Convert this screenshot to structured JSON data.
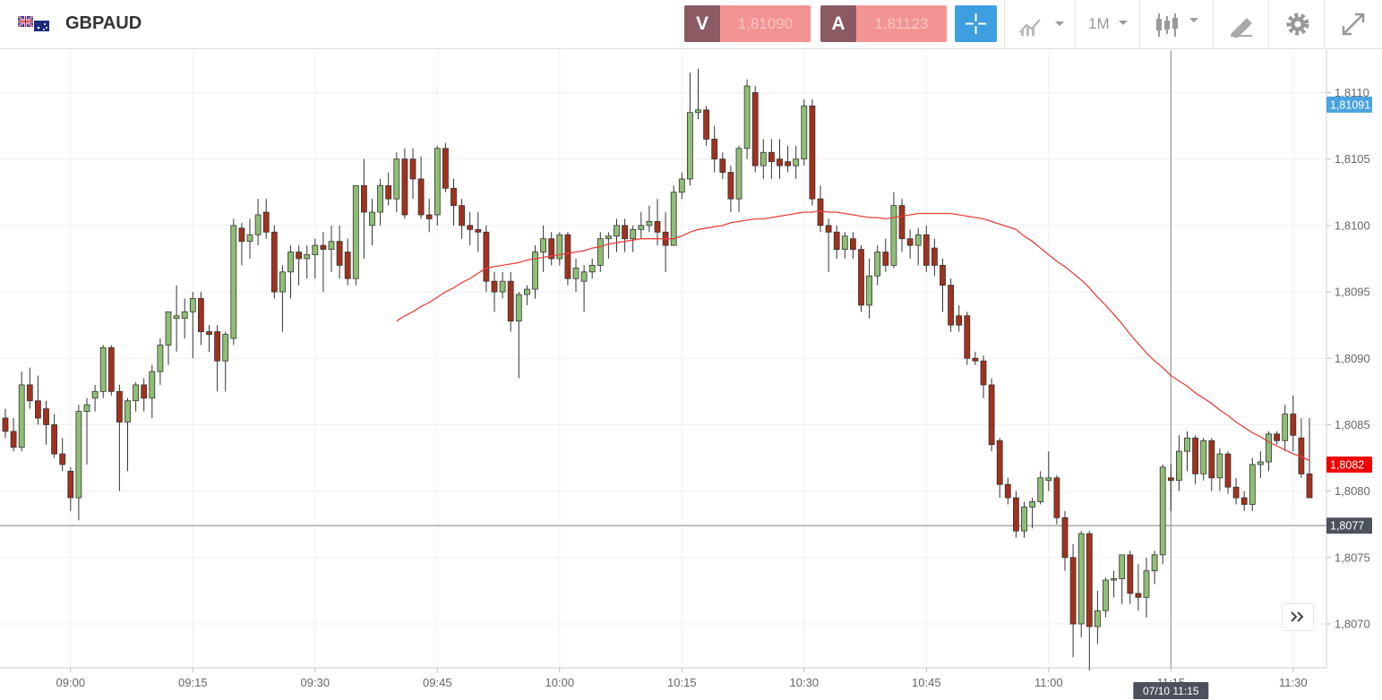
{
  "header": {
    "symbol": "GBPAUD",
    "bid": {
      "label": "V",
      "price": "1,81090"
    },
    "ask": {
      "label": "A",
      "price": "1,81123"
    },
    "timeframe": "1M"
  },
  "chart_data": {
    "type": "candlestick",
    "categories": [
      null,
      null,
      null,
      null,
      null,
      null,
      null,
      null,
      "09:00",
      null,
      null,
      null,
      null,
      null,
      null,
      null,
      null,
      null,
      null,
      null,
      null,
      null,
      null,
      "09:15",
      null,
      null,
      null,
      null,
      null,
      null,
      null,
      null,
      null,
      null,
      null,
      null,
      null,
      null,
      "09:30",
      null,
      null,
      null,
      null,
      null,
      null,
      null,
      null,
      null,
      null,
      null,
      null,
      null,
      null,
      "09:45",
      null,
      null,
      null,
      null,
      null,
      null,
      null,
      null,
      null,
      null,
      null,
      null,
      null,
      null,
      "10:00",
      null,
      null,
      null,
      null,
      null,
      null,
      null,
      null,
      null,
      null,
      null,
      null,
      null,
      null,
      "10:15",
      null,
      null,
      null,
      null,
      null,
      null,
      null,
      null,
      null,
      null,
      null,
      null,
      null,
      null,
      "10:30",
      null,
      null,
      null,
      null,
      null,
      null,
      null,
      null,
      null,
      null,
      null,
      null,
      null,
      null,
      "10:45",
      null,
      null,
      null,
      null,
      null,
      null,
      null,
      null,
      null,
      null,
      null,
      null,
      null,
      null,
      "11:00",
      null,
      null,
      null,
      null,
      null,
      null,
      null,
      null,
      null,
      null,
      null,
      null,
      null,
      null,
      "11:15",
      null,
      null,
      null,
      null,
      null,
      null,
      null,
      null,
      null,
      null,
      null,
      null,
      null,
      null,
      "11:30",
      null,
      null
    ],
    "open": [
      1.80855,
      1.80845,
      1.80833,
      1.8088,
      1.80868,
      1.80862,
      1.8085,
      1.80828,
      1.80815,
      1.80795,
      1.8086,
      1.8087,
      1.80875,
      1.80908,
      1.80875,
      1.80852,
      1.80868,
      1.8088,
      1.8087,
      1.8089,
      1.8091,
      1.8093,
      1.8093,
      1.80935,
      1.80945,
      1.8092,
      1.8092,
      1.80898,
      1.80915,
      1.80998,
      1.80988,
      1.80993,
      1.8101,
      1.80995,
      1.8095,
      1.80965,
      1.8098,
      1.80975,
      1.80978,
      1.80985,
      1.80982,
      1.80988,
      1.8098,
      1.8096,
      1.8103,
      1.81,
      1.8101,
      1.8103,
      1.8102,
      1.8105,
      1.8105,
      1.81035,
      1.81008,
      1.81008,
      1.81058,
      1.81028,
      1.81015,
      1.81,
      1.80997,
      1.80995,
      1.80958,
      1.8095,
      1.80958,
      1.80928,
      1.80948,
      1.80952,
      1.8098,
      1.8099,
      1.80975,
      1.80993,
      1.8096,
      1.80958,
      1.80965,
      1.8097,
      1.8099,
      1.80992,
      1.81,
      1.8099,
      1.80997,
      1.81,
      1.81003,
      1.80995,
      1.80985,
      1.81025,
      1.81035,
      1.81085,
      1.81087,
      1.81065,
      1.8105,
      1.8104,
      1.8102,
      1.81058,
      1.811,
      1.81045,
      1.81055,
      1.8105,
      1.81048,
      1.81045,
      1.8105,
      1.8109,
      1.8102,
      1.81,
      1.80995,
      1.80982,
      1.8099,
      1.80982,
      1.8094,
      1.80962,
      1.8098,
      1.8097,
      1.81015,
      1.8099,
      1.80985,
      1.80993,
      1.80983,
      1.8097,
      1.80955,
      1.80932,
      1.80932,
      1.809,
      1.80898,
      1.8088,
      1.80838,
      1.80805,
      1.80795,
      1.8077,
      1.80788,
      1.80792,
      1.80808,
      1.8081,
      1.8078,
      1.8075,
      1.807,
      1.80768,
      1.80698,
      1.8071,
      1.80733,
      1.80734,
      1.80752,
      1.80723,
      1.8072,
      1.8074,
      1.80752,
      1.8081,
      1.80808,
      1.8083,
      1.8084,
      1.80813,
      1.80838,
      1.8081,
      1.80828,
      1.80803,
      1.80795,
      1.8079,
      1.8082,
      1.80822,
      1.80843,
      1.80838,
      1.80858,
      1.8084,
      1.80813
    ],
    "high": [
      1.80862,
      1.80855,
      1.8089,
      1.80893,
      1.80887,
      1.80868,
      1.80858,
      1.8084,
      1.80818,
      1.80865,
      1.8087,
      1.8088,
      1.8091,
      1.8091,
      1.8088,
      1.8087,
      1.80882,
      1.80885,
      1.80895,
      1.80915,
      1.80935,
      1.80955,
      1.80945,
      1.8095,
      1.8095,
      1.80925,
      1.80925,
      1.8092,
      1.81005,
      1.81002,
      1.81005,
      1.8102,
      1.8102,
      1.81,
      1.8097,
      1.80985,
      1.80985,
      1.80985,
      1.8099,
      1.80995,
      1.81,
      1.81,
      1.8099,
      1.8103,
      1.8105,
      1.8102,
      1.81035,
      1.8104,
      1.81055,
      1.81058,
      1.81058,
      1.81052,
      1.8102,
      1.8106,
      1.81062,
      1.81035,
      1.8102,
      1.8101,
      1.8101,
      1.81,
      1.80965,
      1.80965,
      1.80965,
      1.8095,
      1.80955,
      1.80985,
      1.81,
      1.80995,
      1.80995,
      1.80995,
      1.80975,
      1.8097,
      1.80975,
      1.80995,
      1.80995,
      1.81005,
      1.81005,
      1.81,
      1.8101,
      1.81015,
      1.8102,
      1.8101,
      1.8103,
      1.8104,
      1.81115,
      1.81118,
      1.8109,
      1.81075,
      1.81055,
      1.81045,
      1.8106,
      1.8111,
      1.81105,
      1.81065,
      1.81065,
      1.81065,
      1.8106,
      1.8106,
      1.81095,
      1.81095,
      1.8103,
      1.81005,
      1.81,
      1.80995,
      1.80995,
      1.80985,
      1.80975,
      1.80985,
      1.8099,
      1.81025,
      1.8102,
      1.80997,
      1.80998,
      1.81,
      1.8099,
      1.80975,
      1.8096,
      1.8094,
      1.80935,
      1.80905,
      1.80902,
      1.80885,
      1.8084,
      1.8081,
      1.808,
      1.80792,
      1.80795,
      1.80815,
      1.8083,
      1.80812,
      1.80785,
      1.8076,
      1.8077,
      1.8077,
      1.80725,
      1.80735,
      1.8074,
      1.8075,
      1.80755,
      1.80745,
      1.8075,
      1.80755,
      1.8082,
      1.8082,
      1.80842,
      1.80845,
      1.80842,
      1.8084,
      1.8084,
      1.80832,
      1.8083,
      1.8081,
      1.808,
      1.80825,
      1.8083,
      1.80845,
      1.80845,
      1.80865,
      1.80872,
      1.80855,
      1.80855
    ],
    "low": [
      1.8084,
      1.8083,
      1.8083,
      1.80862,
      1.8085,
      1.80835,
      1.80825,
      1.80815,
      1.80785,
      1.80778,
      1.8082,
      1.8086,
      1.8087,
      1.80872,
      1.808,
      1.80815,
      1.8086,
      1.8086,
      1.80855,
      1.8088,
      1.80895,
      1.80905,
      1.80915,
      1.809,
      1.8091,
      1.80905,
      1.80875,
      1.80875,
      1.8091,
      1.8097,
      1.80975,
      1.80985,
      1.8099,
      1.80945,
      1.8092,
      1.80945,
      1.80955,
      1.8096,
      1.8096,
      1.8095,
      1.80965,
      1.8096,
      1.80955,
      1.80955,
      1.80975,
      1.80985,
      1.81,
      1.81015,
      1.8101,
      1.81005,
      1.8102,
      1.81005,
      1.80995,
      1.81,
      1.81025,
      1.81,
      1.8099,
      1.80985,
      1.8098,
      1.8095,
      1.80935,
      1.80945,
      1.8092,
      1.80885,
      1.8094,
      1.80945,
      1.80965,
      1.8097,
      1.8097,
      1.80955,
      1.8095,
      1.80935,
      1.8096,
      1.80965,
      1.80975,
      1.8098,
      1.8098,
      1.8098,
      1.8099,
      1.80995,
      1.80985,
      1.80965,
      1.80985,
      1.8102,
      1.8103,
      1.8108,
      1.8106,
      1.8104,
      1.81035,
      1.8101,
      1.8101,
      1.8105,
      1.8104,
      1.81035,
      1.81035,
      1.81035,
      1.8104,
      1.81035,
      1.81045,
      1.81015,
      1.80995,
      1.80965,
      1.80975,
      1.80975,
      1.80975,
      1.80935,
      1.8093,
      1.80955,
      1.80965,
      1.80968,
      1.8098,
      1.80975,
      1.8097,
      1.80965,
      1.80962,
      1.80935,
      1.8092,
      1.8092,
      1.80895,
      1.80895,
      1.8087,
      1.8083,
      1.80795,
      1.8079,
      1.80765,
      1.80765,
      1.80772,
      1.8079,
      1.808,
      1.80775,
      1.8074,
      1.80675,
      1.8069,
      1.80665,
      1.80685,
      1.80705,
      1.8072,
      1.80715,
      1.80715,
      1.8071,
      1.80705,
      1.8073,
      1.80745,
      1.80785,
      1.808,
      1.80815,
      1.80805,
      1.80808,
      1.808,
      1.808,
      1.80798,
      1.8079,
      1.80785,
      1.80785,
      1.8081,
      1.80815,
      1.80835,
      1.8083,
      1.8083,
      1.8081,
      1.80795
    ],
    "close": [
      1.80845,
      1.80833,
      1.8088,
      1.80868,
      1.80855,
      1.8085,
      1.80828,
      1.8082,
      1.80795,
      1.8086,
      1.80865,
      1.80875,
      1.80908,
      1.80875,
      1.80852,
      1.80868,
      1.8088,
      1.8087,
      1.8089,
      1.8091,
      1.80935,
      1.80932,
      1.80935,
      1.80945,
      1.8092,
      1.80918,
      1.80898,
      1.80918,
      1.81,
      1.80988,
      1.80993,
      1.81008,
      1.80995,
      1.8095,
      1.80965,
      1.8098,
      1.80975,
      1.80978,
      1.80985,
      1.80982,
      1.80988,
      1.8097,
      1.8096,
      1.8103,
      1.8101,
      1.8101,
      1.8103,
      1.8102,
      1.8105,
      1.81008,
      1.81035,
      1.81008,
      1.81005,
      1.81058,
      1.81028,
      1.81015,
      1.81,
      1.80997,
      1.80995,
      1.80958,
      1.8095,
      1.80958,
      1.80928,
      1.80948,
      1.80952,
      1.8098,
      1.8099,
      1.80975,
      1.80993,
      1.8096,
      1.80968,
      1.80965,
      1.8097,
      1.8099,
      1.80992,
      1.81,
      1.8099,
      1.80997,
      1.81,
      1.81003,
      1.80995,
      1.80985,
      1.81025,
      1.81035,
      1.81085,
      1.81087,
      1.81065,
      1.8105,
      1.8104,
      1.8102,
      1.81058,
      1.81105,
      1.81045,
      1.81055,
      1.81048,
      1.81045,
      1.81045,
      1.8105,
      1.8109,
      1.8102,
      1.81,
      1.80995,
      1.80982,
      1.80992,
      1.80982,
      1.8094,
      1.80962,
      1.8098,
      1.8097,
      1.81015,
      1.8099,
      1.80985,
      1.80993,
      1.8097,
      1.8097,
      1.80955,
      1.80925,
      1.80925,
      1.809,
      1.80898,
      1.8088,
      1.80835,
      1.80805,
      1.80795,
      1.8077,
      1.80788,
      1.80792,
      1.8081,
      1.8081,
      1.8078,
      1.8075,
      1.807,
      1.80768,
      1.80698,
      1.8071,
      1.80733,
      1.80734,
      1.80752,
      1.80723,
      1.8072,
      1.8074,
      1.80752,
      1.80818,
      1.80808,
      1.8083,
      1.8084,
      1.80813,
      1.80838,
      1.8081,
      1.80828,
      1.80803,
      1.80795,
      1.8079,
      1.8082,
      1.80822,
      1.80843,
      1.80838,
      1.80858,
      1.80842,
      1.80813,
      1.80795
    ],
    "up_color": "#8fbf74",
    "down_color": "#a3311d",
    "moving_average": {
      "color": "#e8403a",
      "values": [
        null,
        null,
        null,
        null,
        null,
        null,
        null,
        null,
        null,
        null,
        null,
        null,
        null,
        null,
        null,
        null,
        null,
        null,
        null,
        null,
        null,
        null,
        null,
        null,
        null,
        null,
        null,
        null,
        null,
        null,
        null,
        null,
        null,
        null,
        null,
        null,
        null,
        null,
        null,
        null,
        null,
        null,
        null,
        null,
        null,
        null,
        null,
        null,
        1.80928,
        1.80932,
        1.80935,
        1.80939,
        1.80942,
        1.80946,
        1.8095,
        1.80953,
        1.80957,
        1.8096,
        1.80964,
        1.80968,
        1.80969,
        1.8097,
        1.80971,
        1.80972,
        1.80974,
        1.80975,
        1.80976,
        1.80977,
        1.80978,
        1.80979,
        1.8098,
        1.80981,
        1.80983,
        1.80984,
        1.80986,
        1.80987,
        1.80988,
        1.80989,
        1.8099,
        1.8099,
        1.8099,
        1.8099,
        1.8099,
        1.80992,
        1.80995,
        1.80997,
        1.80998,
        1.80999,
        1.81,
        1.81002,
        1.81003,
        1.81004,
        1.81005,
        1.81005,
        1.81006,
        1.81007,
        1.81008,
        1.81009,
        1.8101,
        1.8101,
        1.81011,
        1.8101,
        1.8101,
        1.81009,
        1.81008,
        1.81007,
        1.81006,
        1.81006,
        1.81005,
        1.81006,
        1.81007,
        1.81008,
        1.81009,
        1.81009,
        1.81009,
        1.81009,
        1.81009,
        1.81008,
        1.81007,
        1.81006,
        1.81005,
        1.81003,
        1.81001,
        1.80999,
        1.80997,
        1.80992,
        1.80988,
        1.80983,
        1.80978,
        1.80973,
        1.80969,
        1.80964,
        1.80959,
        1.80953,
        1.80946,
        1.8094,
        1.80933,
        1.80926,
        1.80918,
        1.80911,
        1.80904,
        1.80898,
        1.80893,
        1.80887,
        1.80883,
        1.80879,
        1.80874,
        1.8087,
        1.80866,
        1.80861,
        1.80857,
        1.80852,
        1.80848,
        1.80844,
        1.80841,
        1.80837,
        1.80834,
        1.80831,
        1.80828,
        1.80826,
        1.80823
      ]
    },
    "ylim": [
      1.80667,
      1.81132
    ],
    "yticks": [
      {
        "value": 1.807,
        "label": "1,8070"
      },
      {
        "value": 1.8075,
        "label": "1,8075"
      },
      {
        "value": 1.808,
        "label": "1,8080"
      },
      {
        "value": 1.8085,
        "label": "1,8085"
      },
      {
        "value": 1.809,
        "label": "1,8090"
      },
      {
        "value": 1.8095,
        "label": "1,8095"
      },
      {
        "value": 1.81,
        "label": "1,8100"
      },
      {
        "value": 1.8105,
        "label": "1,8105"
      },
      {
        "value": 1.811,
        "label": "1,8110"
      }
    ],
    "grid": true,
    "price_tags": [
      {
        "value": 1.81091,
        "label": "1,81091",
        "color": "#4aa3df"
      },
      {
        "value": 1.8082,
        "label": "1,8082",
        "color": "#f00000"
      }
    ],
    "crosshair": {
      "value": 1.80774,
      "label": "1,8077",
      "time": "07/10 11:15"
    }
  }
}
